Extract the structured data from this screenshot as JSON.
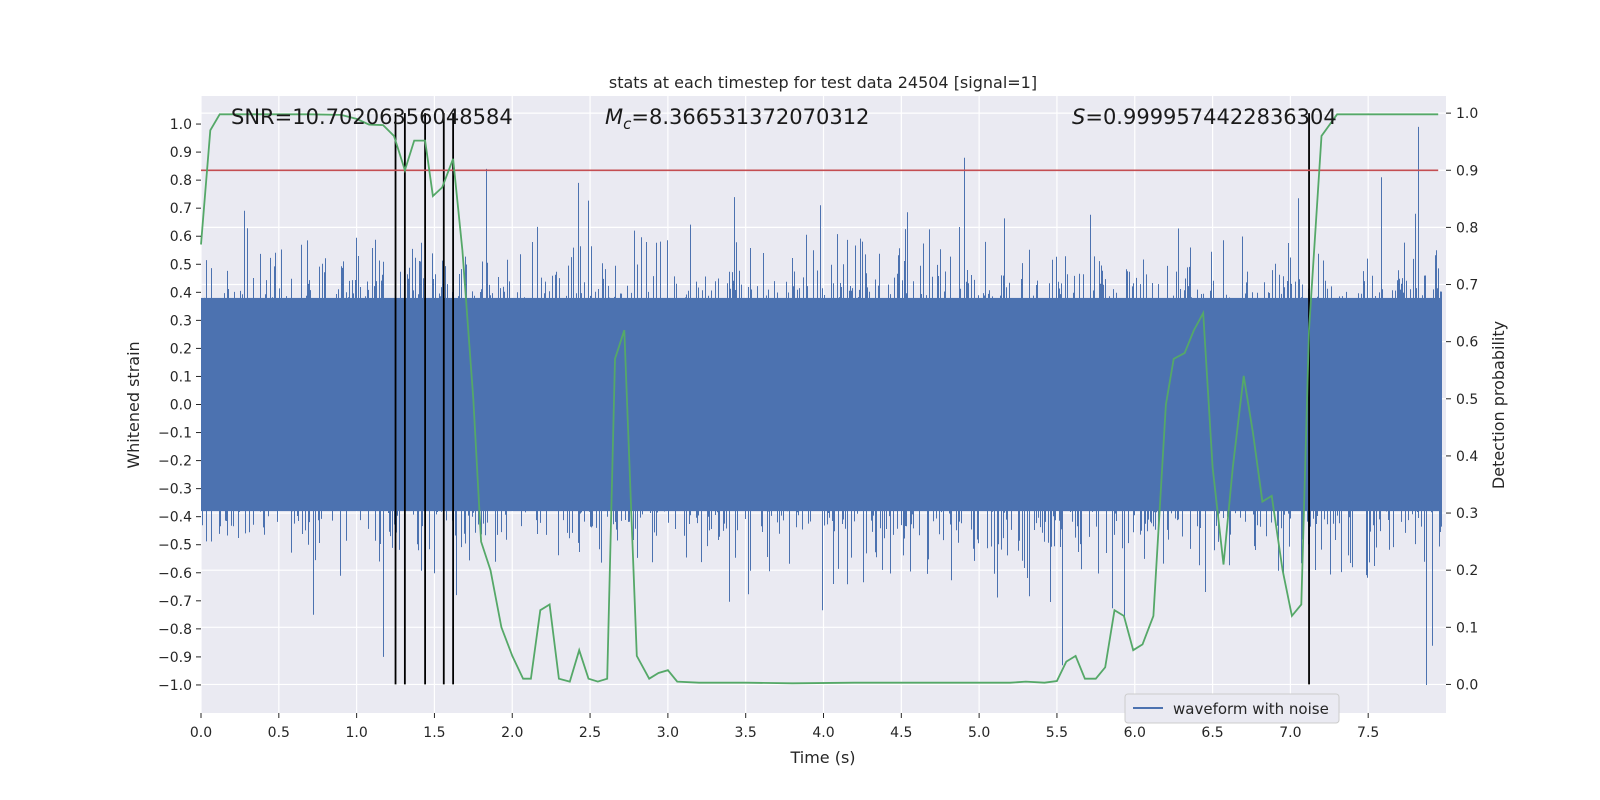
{
  "chart_data": {
    "type": "line",
    "title": "stats at each timestep for test data 24504 [signal=1]",
    "xlabel": "Time (s)",
    "ylabel": "Whitened strain",
    "ylabel_right": "Detection probability",
    "xlim": [
      0.0,
      8.0
    ],
    "ylim": [
      -1.1,
      1.1
    ],
    "ylim_right": [
      -0.05,
      1.03
    ],
    "x_ticks": [
      "0.0",
      "0.5",
      "1.0",
      "1.5",
      "2.0",
      "2.5",
      "3.0",
      "3.5",
      "4.0",
      "4.5",
      "5.0",
      "5.5",
      "6.0",
      "6.5",
      "7.0",
      "7.5"
    ],
    "y_ticks": [
      "1.0",
      "0.9",
      "0.8",
      "0.7",
      "0.6",
      "0.5",
      "0.4",
      "0.3",
      "0.2",
      "0.1",
      "0.0",
      "−0.1",
      "−0.2",
      "−0.3",
      "−0.4",
      "−0.5",
      "−0.6",
      "−0.7",
      "−0.8",
      "−0.9",
      "−1.0"
    ],
    "y_right_ticks": [
      "1.0",
      "0.9",
      "0.8",
      "0.7",
      "0.6",
      "0.5",
      "0.4",
      "0.3",
      "0.2",
      "0.1",
      "0.0"
    ],
    "annotations": {
      "snr": "SNR=10.70206356048584",
      "mc_symbol": "M",
      "mc_sub": "c",
      "mc_value": "=8.366531372070312",
      "s_symbol": "S",
      "s_value": "=0.9999574422836304"
    },
    "threshold": {
      "value": 0.9,
      "color": "#c44e52"
    },
    "vertical_markers": [
      1.25,
      1.31,
      1.44,
      1.56,
      1.62,
      7.12
    ],
    "series": [
      {
        "name": "waveform with noise",
        "color": "#4c72b0",
        "seed": 24504,
        "sample_rate": 2048,
        "dense_band": 0.38,
        "spike_extremes": [
          {
            "x": 1.83,
            "y": 0.84
          },
          {
            "x": 2.42,
            "y": 0.79
          },
          {
            "x": 2.78,
            "y": 0.62
          },
          {
            "x": 4.9,
            "y": 0.88
          },
          {
            "x": 7.58,
            "y": 0.81
          },
          {
            "x": 7.82,
            "y": 0.99
          },
          {
            "x": 1.17,
            "y": -0.9
          },
          {
            "x": 7.87,
            "y": -1.0
          },
          {
            "x": 5.53,
            "y": -0.93
          },
          {
            "x": 7.91,
            "y": -0.86
          },
          {
            "x": 0.72,
            "y": -0.75
          }
        ]
      },
      {
        "name": "detection probability",
        "color": "#55a868",
        "axis": "right",
        "x": [
          0.0,
          0.06,
          0.12,
          0.18,
          0.3,
          0.5,
          0.7,
          0.9,
          1.0,
          1.08,
          1.17,
          1.24,
          1.31,
          1.37,
          1.44,
          1.49,
          1.55,
          1.62,
          1.68,
          1.75,
          1.8,
          1.86,
          1.93,
          2.0,
          2.07,
          2.12,
          2.18,
          2.24,
          2.3,
          2.37,
          2.43,
          2.49,
          2.55,
          2.61,
          2.66,
          2.72,
          2.8,
          2.88,
          2.94,
          3.0,
          3.06,
          3.2,
          3.5,
          3.8,
          4.2,
          4.6,
          5.0,
          5.2,
          5.3,
          5.42,
          5.5,
          5.56,
          5.62,
          5.68,
          5.75,
          5.81,
          5.87,
          5.93,
          5.99,
          6.05,
          6.12,
          6.2,
          6.25,
          6.32,
          6.38,
          6.44,
          6.5,
          6.57,
          6.63,
          6.7,
          6.76,
          6.82,
          6.88,
          6.95,
          7.01,
          7.07,
          7.12,
          7.2,
          7.3,
          7.5,
          7.7,
          7.95
        ],
        "y": [
          0.77,
          0.97,
          0.998,
          0.998,
          0.998,
          0.998,
          0.998,
          0.997,
          0.99,
          0.98,
          0.979,
          0.96,
          0.9,
          0.952,
          0.952,
          0.855,
          0.87,
          0.92,
          0.76,
          0.5,
          0.25,
          0.2,
          0.1,
          0.05,
          0.01,
          0.01,
          0.13,
          0.14,
          0.01,
          0.005,
          0.06,
          0.01,
          0.005,
          0.01,
          0.57,
          0.62,
          0.05,
          0.01,
          0.02,
          0.025,
          0.005,
          0.003,
          0.003,
          0.002,
          0.003,
          0.003,
          0.003,
          0.003,
          0.005,
          0.003,
          0.006,
          0.04,
          0.05,
          0.01,
          0.01,
          0.03,
          0.13,
          0.12,
          0.06,
          0.07,
          0.12,
          0.49,
          0.57,
          0.58,
          0.62,
          0.65,
          0.38,
          0.21,
          0.38,
          0.54,
          0.44,
          0.32,
          0.33,
          0.2,
          0.12,
          0.14,
          0.62,
          0.96,
          0.998,
          0.998,
          0.998,
          0.998
        ]
      }
    ],
    "legend": {
      "entries": [
        "waveform with noise"
      ],
      "location": "lower-right"
    }
  }
}
